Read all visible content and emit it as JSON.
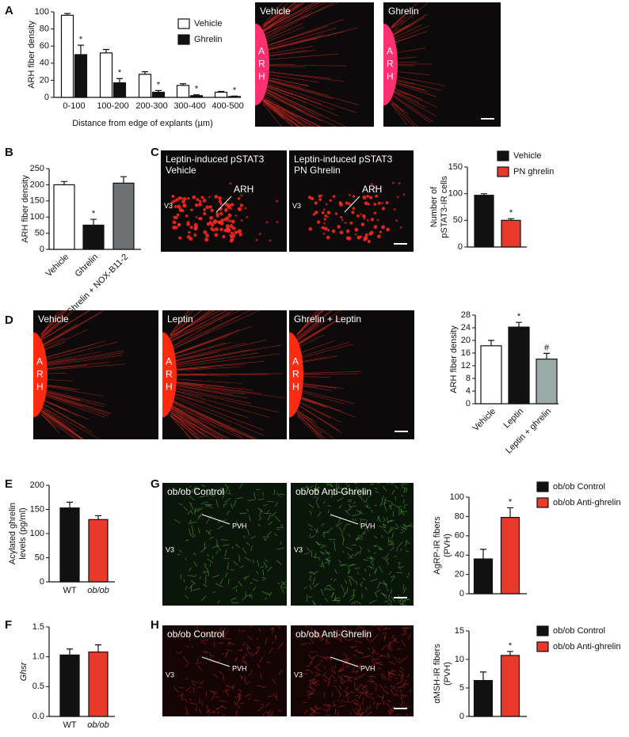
{
  "panel_letters": [
    "A",
    "B",
    "C",
    "D",
    "E",
    "F",
    "G",
    "H"
  ],
  "micrographs": [
    {
      "title": "Vehicle",
      "side_label": [
        "A",
        "R",
        "H"
      ]
    },
    {
      "title": "Ghrelin",
      "side_label": [
        "A",
        "R",
        "H"
      ]
    },
    {
      "title": [
        "Leptin-induced pSTAT3",
        "Vehicle"
      ],
      "region": "ARH",
      "ventricle": "V3"
    },
    {
      "title": [
        "Leptin-induced pSTAT3",
        "PN Ghrelin"
      ],
      "region": "ARH",
      "ventricle": "V3"
    },
    {
      "title": "Vehicle",
      "side_label": [
        "A",
        "R",
        "H"
      ]
    },
    {
      "title": "Leptin",
      "side_label": [
        "A",
        "R",
        "H"
      ]
    },
    {
      "title": "Ghrelin + Leptin",
      "side_label": [
        "A",
        "R",
        "H"
      ]
    },
    {
      "title": "ob/ob Control",
      "region": "PVH",
      "ventricle": "V3"
    },
    {
      "title": "ob/ob Anti-Ghrelin",
      "region": "PVH",
      "ventricle": "V3"
    },
    {
      "title": "ob/ob Control",
      "region": "PVH",
      "ventricle": "V3"
    },
    {
      "title": "ob/ob Anti-Ghrelin",
      "region": "PVH",
      "ventricle": "V3"
    }
  ],
  "chart_data": [
    {
      "type": "bar",
      "y_label": "ARH fiber density",
      "x_label": "Distance from edge of explants (µm)",
      "categories": [
        "0-100",
        "100-200",
        "200-300",
        "300-400",
        "400-500"
      ],
      "series": [
        {
          "name": "Vehicle",
          "color": "#ffffff",
          "values": [
            96,
            52,
            27,
            14,
            6
          ],
          "errors": [
            2,
            4,
            3,
            2,
            1
          ]
        },
        {
          "name": "Ghrelin",
          "color": "#111111",
          "values": [
            50,
            17,
            6,
            2,
            1
          ],
          "errors": [
            11,
            5,
            2,
            1,
            0.5
          ],
          "markers": [
            "*",
            "*",
            "*",
            "*",
            "*"
          ]
        }
      ],
      "ylim": [
        0,
        100
      ],
      "yticks": [
        0,
        20,
        40,
        60,
        80,
        100
      ]
    },
    {
      "type": "bar",
      "y_label": "ARH fiber density",
      "categories": [
        "Vehicle",
        "Ghrelin",
        "Ghrelin + NOX-B11-2"
      ],
      "values": [
        200,
        75,
        205
      ],
      "errors": [
        10,
        18,
        20
      ],
      "colors": [
        "#ffffff",
        "#111111",
        "#6d7070"
      ],
      "markers": [
        null,
        "*",
        null
      ],
      "ylim": [
        0,
        250
      ],
      "yticks": [
        0,
        50,
        100,
        150,
        200,
        250
      ]
    },
    {
      "type": "bar",
      "y_label": [
        "Number of",
        "pSTAT3-IR cells"
      ],
      "series": [
        {
          "name": "Vehicle",
          "color": "#111111",
          "values": [
            97
          ],
          "errors": [
            3
          ]
        },
        {
          "name": "PN ghrelin",
          "color": "#e8392b",
          "values": [
            50
          ],
          "errors": [
            3
          ],
          "markers": [
            "*"
          ]
        }
      ],
      "ylim": [
        0,
        150
      ],
      "yticks": [
        0,
        50,
        100,
        150
      ]
    },
    {
      "type": "bar",
      "y_label": "ARH fiber density",
      "categories": [
        "Vehicle",
        "Leptin",
        "Leptin + ghrelin"
      ],
      "values": [
        18.3,
        24.2,
        14.1
      ],
      "errors": [
        1.7,
        1.5,
        1.8
      ],
      "colors": [
        "#ffffff",
        "#111111",
        "#9aaaa8"
      ],
      "markers": [
        null,
        "*",
        "#"
      ],
      "ylim": [
        0,
        28
      ],
      "yticks": [
        0,
        4,
        8,
        12,
        16,
        20,
        24,
        28
      ]
    },
    {
      "type": "bar",
      "y_label": [
        "Acylated ghrelin",
        "levels (pg/ml)"
      ],
      "categories": [
        "WT",
        "ob/ob"
      ],
      "values": [
        153,
        129
      ],
      "errors": [
        12,
        8
      ],
      "colors": [
        "#111111",
        "#e8392b"
      ],
      "ylim": [
        0,
        200
      ],
      "yticks": [
        0,
        50,
        100,
        150,
        200
      ]
    },
    {
      "type": "bar",
      "y_label": "Ghsr",
      "categories": [
        "WT",
        "ob/ob"
      ],
      "values": [
        1.03,
        1.08
      ],
      "errors": [
        0.1,
        0.12
      ],
      "colors": [
        "#111111",
        "#e8392b"
      ],
      "ylim": [
        0,
        1.5
      ],
      "yticks": [
        {
          "value": 0,
          "label": "0.0"
        },
        0.5,
        {
          "value": 1,
          "label": "1.0"
        },
        1.5
      ]
    },
    {
      "type": "bar",
      "y_label": [
        "AgRP-IR fibers",
        "(PVH)"
      ],
      "series": [
        {
          "name": "ob/ob Control",
          "color": "#111111",
          "values": [
            36
          ],
          "errors": [
            10
          ]
        },
        {
          "name": "ob/ob Anti-ghrelin",
          "color": "#e8392b",
          "values": [
            79
          ],
          "errors": [
            10
          ],
          "markers": [
            "*"
          ]
        }
      ],
      "ylim": [
        0,
        100
      ],
      "yticks": [
        0,
        20,
        40,
        60,
        80,
        100
      ]
    },
    {
      "type": "bar",
      "y_label": [
        "αMSH-IR fibers",
        "(PVH)"
      ],
      "series": [
        {
          "name": "ob/ob Control",
          "color": "#111111",
          "values": [
            6.3
          ],
          "errors": [
            1.5
          ]
        },
        {
          "name": "ob/ob Anti-ghrelin",
          "color": "#e8392b",
          "values": [
            10.7
          ],
          "errors": [
            0.7
          ],
          "markers": [
            "*"
          ]
        }
      ],
      "ylim": [
        0,
        15
      ],
      "yticks": [
        0,
        5,
        10,
        15
      ]
    }
  ]
}
